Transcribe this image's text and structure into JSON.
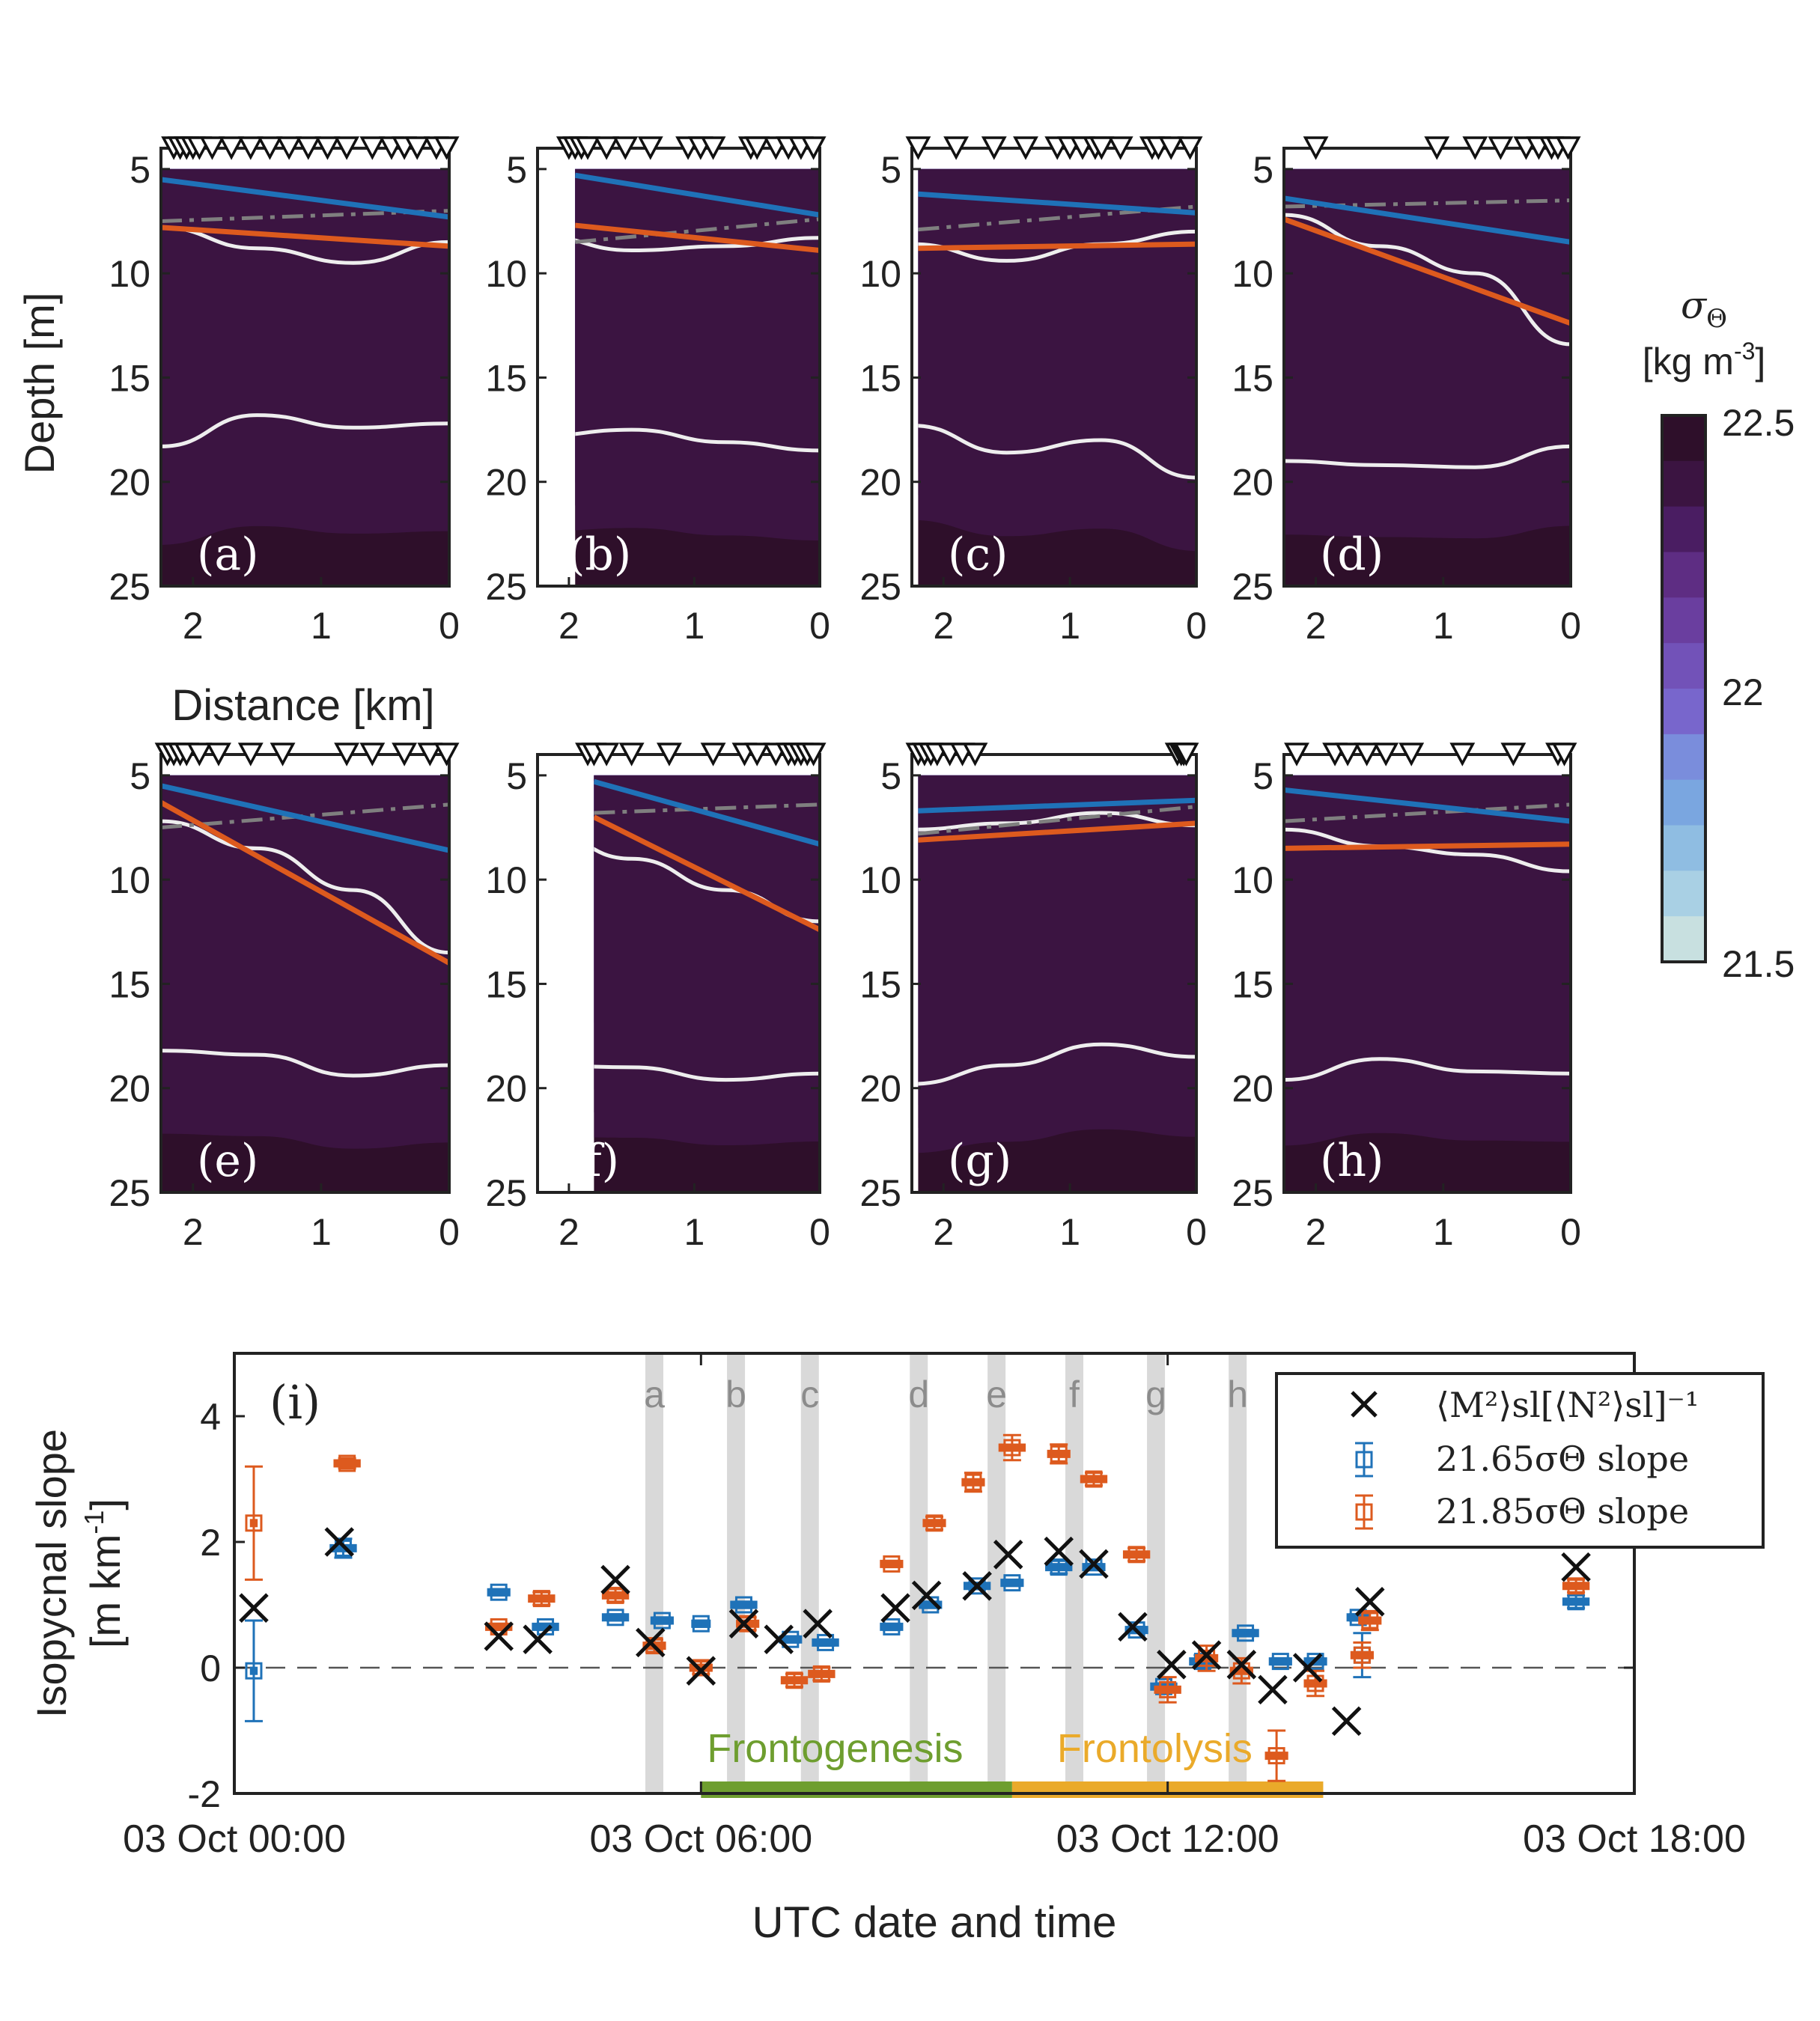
{
  "colors": {
    "blue": "#1f72b8",
    "orange": "#dd5a1e",
    "green": "#6e9e2f",
    "gold": "#eaaa2a",
    "gray_dashdot": "#7f7f7f",
    "contour_white": "#eeeeee",
    "shade": "#d9d9d9",
    "colormap": [
      "#e8f2f1",
      "#c8e0e0",
      "#a9d0e4",
      "#8fbde2",
      "#7aa6e0",
      "#7a8ddc",
      "#7866cc",
      "#7252b8",
      "#6a3e9f",
      "#5e2d83",
      "#4a1d62",
      "#3b1441",
      "#2e0f2a"
    ]
  },
  "sections": {
    "ylabel": "Depth [m]",
    "xlabel": "Distance [km]",
    "yticks": [
      "5",
      "10",
      "15",
      "20",
      "25"
    ],
    "xticks": [
      "2",
      "1",
      "0"
    ],
    "panels": [
      {
        "label": "(a)",
        "blue_line": [
          5.5,
          7.3
        ],
        "orange_line": [
          7.8,
          8.7
        ],
        "dashdot": [
          7.5,
          7.0
        ],
        "contour_upper": [
          7.8,
          8.8,
          9.5,
          8.5
        ],
        "contour_lower": [
          18.3,
          16.8,
          17.4,
          17.2
        ],
        "triangles_km": [
          2.15,
          2.1,
          2.05,
          2.0,
          1.95,
          1.85,
          1.7,
          1.55,
          1.4,
          1.25,
          1.1,
          0.95,
          0.8,
          0.6,
          0.45,
          0.35,
          0.25,
          0.1,
          0.02
        ],
        "data_start_km": 2.25
      },
      {
        "label": "(b)",
        "blue_line": [
          5.3,
          7.2
        ],
        "orange_line": [
          7.7,
          8.9
        ],
        "dashdot": [
          8.5,
          7.4
        ],
        "contour_upper": [
          8.2,
          8.9,
          8.7,
          8.3
        ],
        "contour_lower": [
          17.8,
          17.5,
          18.1,
          18.5
        ],
        "triangles_km": [
          2.0,
          1.95,
          1.9,
          1.85,
          1.7,
          1.55,
          1.35,
          1.05,
          0.95,
          0.85,
          0.55,
          0.5,
          0.35,
          0.25,
          0.15,
          0.05
        ],
        "data_start_km": 1.95
      },
      {
        "label": "(c)",
        "blue_line": [
          6.2,
          7.1
        ],
        "orange_line": [
          8.8,
          8.6
        ],
        "dashdot": [
          7.9,
          6.8
        ],
        "contour_upper": [
          8.6,
          9.4,
          8.6,
          8.0
        ],
        "contour_lower": [
          17.3,
          18.6,
          18.0,
          19.8
        ],
        "triangles_km": [
          2.2,
          1.9,
          1.6,
          1.35,
          1.1,
          1.0,
          0.9,
          0.8,
          0.75,
          0.6,
          0.35,
          0.3,
          0.2,
          0.05
        ],
        "data_start_km": 2.2
      },
      {
        "label": "(d)",
        "blue_line": [
          6.4,
          8.5
        ],
        "orange_line": [
          7.4,
          12.4
        ],
        "dashdot": [
          6.8,
          6.5
        ],
        "contour_upper": [
          7.2,
          8.7,
          10.0,
          13.4
        ],
        "contour_lower": [
          19.0,
          19.2,
          19.3,
          18.3
        ],
        "triangles_km": [
          2.0,
          1.05,
          0.75,
          0.55,
          0.35,
          0.25,
          0.15,
          0.1,
          0.02
        ],
        "data_start_km": 2.25
      }
    ],
    "panels_bottom": [
      {
        "label": "(e)",
        "blue_line": [
          5.5,
          8.6
        ],
        "orange_line": [
          6.3,
          14.0
        ],
        "dashdot": [
          7.5,
          6.4
        ],
        "contour_upper": [
          7.2,
          8.5,
          10.5,
          13.5
        ],
        "contour_lower": [
          18.2,
          18.4,
          19.4,
          18.9
        ],
        "triangles_km": [
          2.2,
          2.15,
          2.1,
          2.05,
          1.95,
          1.8,
          1.55,
          1.3,
          0.8,
          0.6,
          0.35,
          0.15,
          0.02
        ],
        "data_start_km": 2.25
      },
      {
        "label": "(f)",
        "blue_line": [
          5.3,
          8.3
        ],
        "orange_line": [
          7.0,
          12.4
        ],
        "dashdot": [
          6.8,
          6.4
        ],
        "contour_upper": [
          7.5,
          9.0,
          10.5,
          12.0
        ],
        "contour_lower": [
          18.9,
          19.0,
          19.6,
          19.3
        ],
        "triangles_km": [
          1.85,
          1.8,
          1.7,
          1.5,
          1.2,
          0.85,
          0.6,
          0.5,
          0.35,
          0.25,
          0.2,
          0.15,
          0.1,
          0.05
        ],
        "data_start_km": 1.8
      },
      {
        "label": "(g)",
        "blue_line": [
          6.7,
          6.2
        ],
        "orange_line": [
          8.1,
          7.3
        ],
        "dashdot": [
          7.8,
          6.5
        ],
        "contour_upper": [
          7.6,
          7.3,
          6.8,
          7.4
        ],
        "contour_lower": [
          19.8,
          18.9,
          17.9,
          18.5
        ],
        "triangles_km": [
          2.2,
          2.15,
          2.1,
          2.05,
          1.95,
          1.85,
          1.75,
          0.15,
          0.12,
          0.1,
          0.08
        ],
        "data_start_km": 2.2
      },
      {
        "label": "(h)",
        "blue_line": [
          5.7,
          7.2
        ],
        "orange_line": [
          8.5,
          8.3
        ],
        "dashdot": [
          7.2,
          6.4
        ],
        "contour_upper": [
          7.6,
          8.4,
          8.8,
          9.6
        ],
        "contour_lower": [
          19.6,
          18.6,
          19.2,
          19.3
        ],
        "triangles_km": [
          2.15,
          1.85,
          1.75,
          1.6,
          1.45,
          1.25,
          0.85,
          0.45,
          0.1,
          0.05
        ],
        "data_start_km": 2.25
      }
    ]
  },
  "colorbar": {
    "title_symbol": "σ",
    "title_sub": "Θ",
    "units_base": "[kg m",
    "units_exp": "-3",
    "units_close": "]",
    "ticks": [
      "22.5",
      "22",
      "21.5"
    ],
    "range": [
      21.5,
      22.5
    ]
  },
  "chart_data": {
    "type": "scatter",
    "panel_label": "(i)",
    "ylabel_line1": "Isopycnal slope",
    "ylabel_line2_base": "[m km",
    "ylabel_line2_exp": "-1",
    "ylabel_line2_close": "]",
    "xlabel": "UTC date and time",
    "xticks": [
      {
        "t": 0,
        "label": "03 Oct 00:00"
      },
      {
        "t": 6,
        "label": "03 Oct 06:00"
      },
      {
        "t": 12,
        "label": "03 Oct 12:00"
      },
      {
        "t": 18,
        "label": "03 Oct 18:00"
      }
    ],
    "xlim": [
      0,
      18
    ],
    "ylim": [
      -2,
      5
    ],
    "yticks": [
      -2,
      0,
      2,
      4
    ],
    "shaded_times": [
      {
        "t": 5.4,
        "label": "a"
      },
      {
        "t": 6.45,
        "label": "b"
      },
      {
        "t": 7.4,
        "label": "c"
      },
      {
        "t": 8.8,
        "label": "d"
      },
      {
        "t": 9.8,
        "label": "e"
      },
      {
        "t": 10.8,
        "label": "f"
      },
      {
        "t": 11.85,
        "label": "g"
      },
      {
        "t": 12.9,
        "label": "h"
      }
    ],
    "phases": [
      {
        "name": "Frontogenesis",
        "t0": 6.0,
        "t1": 10.0
      },
      {
        "name": "Frontolysis",
        "t0": 10.0,
        "t1": 14.0
      }
    ],
    "legend": {
      "cross_label": "⟨M²⟩sl[⟨N²⟩sl]⁻¹",
      "blue_label": "21.65σΘ slope",
      "orange_label": "21.85σΘ slope"
    },
    "series_cross": [
      [
        0.25,
        0.95
      ],
      [
        1.35,
        2.0
      ],
      [
        3.4,
        0.5
      ],
      [
        3.9,
        0.45
      ],
      [
        4.9,
        1.4
      ],
      [
        5.35,
        0.4
      ],
      [
        6.0,
        -0.05
      ],
      [
        6.55,
        0.7
      ],
      [
        7.0,
        0.45
      ],
      [
        7.5,
        0.7
      ],
      [
        8.5,
        0.95
      ],
      [
        8.9,
        1.15
      ],
      [
        9.55,
        1.3
      ],
      [
        9.95,
        1.8
      ],
      [
        10.6,
        1.85
      ],
      [
        11.05,
        1.65
      ],
      [
        11.55,
        0.65
      ],
      [
        12.05,
        0.05
      ],
      [
        12.5,
        0.2
      ],
      [
        12.95,
        0.05
      ],
      [
        13.35,
        -0.35
      ],
      [
        13.8,
        0.0
      ],
      [
        14.3,
        -0.85
      ],
      [
        14.6,
        1.05
      ],
      [
        17.25,
        1.6
      ]
    ],
    "series_blue": [
      {
        "t": 0.25,
        "v": -0.05,
        "w": 0.1,
        "e": 0.8
      },
      {
        "t": 1.4,
        "v": 1.9,
        "w": 0.35,
        "e": 0.15
      },
      {
        "t": 3.4,
        "v": 1.2,
        "w": 0.3,
        "e": 0.05
      },
      {
        "t": 4.0,
        "v": 0.65,
        "w": 0.35,
        "e": 0.05
      },
      {
        "t": 4.9,
        "v": 0.8,
        "w": 0.35,
        "e": 0.05
      },
      {
        "t": 5.5,
        "v": 0.75,
        "w": 0.3,
        "e": 0.05
      },
      {
        "t": 6.0,
        "v": 0.7,
        "w": 0.25,
        "e": 0.05
      },
      {
        "t": 6.55,
        "v": 1.0,
        "w": 0.35,
        "e": 0.05
      },
      {
        "t": 7.15,
        "v": 0.45,
        "w": 0.3,
        "e": 0.05
      },
      {
        "t": 7.6,
        "v": 0.4,
        "w": 0.35,
        "e": 0.05
      },
      {
        "t": 8.45,
        "v": 0.65,
        "w": 0.3,
        "e": 0.05
      },
      {
        "t": 8.95,
        "v": 1.0,
        "w": 0.3,
        "e": 0.05
      },
      {
        "t": 9.55,
        "v": 1.3,
        "w": 0.35,
        "e": 0.05
      },
      {
        "t": 10.0,
        "v": 1.35,
        "w": 0.3,
        "e": 0.05
      },
      {
        "t": 10.6,
        "v": 1.6,
        "w": 0.35,
        "e": 0.1
      },
      {
        "t": 11.05,
        "v": 1.6,
        "w": 0.3,
        "e": 0.05
      },
      {
        "t": 11.6,
        "v": 0.6,
        "w": 0.3,
        "e": 0.05
      },
      {
        "t": 11.95,
        "v": -0.3,
        "w": 0.35,
        "e": 0.05
      },
      {
        "t": 12.45,
        "v": 0.1,
        "w": 0.35,
        "e": 0.1
      },
      {
        "t": 13.0,
        "v": 0.55,
        "w": 0.35,
        "e": 0.05
      },
      {
        "t": 13.45,
        "v": 0.1,
        "w": 0.3,
        "e": 0.05
      },
      {
        "t": 13.9,
        "v": 0.1,
        "w": 0.3,
        "e": 0.05
      },
      {
        "t": 14.45,
        "v": 0.8,
        "w": 0.3,
        "e": 0.05
      },
      {
        "t": 14.5,
        "v": 0.2,
        "w": 0.15,
        "e": 0.35
      },
      {
        "t": 17.25,
        "v": 1.05,
        "w": 0.35,
        "e": 0.1
      }
    ],
    "series_orange": [
      {
        "t": 0.25,
        "v": 2.3,
        "w": 0.1,
        "e": 0.9
      },
      {
        "t": 1.45,
        "v": 3.25,
        "w": 0.35,
        "e": 0.08
      },
      {
        "t": 3.4,
        "v": 0.65,
        "w": 0.35,
        "e": 0.05
      },
      {
        "t": 3.95,
        "v": 1.1,
        "w": 0.35,
        "e": 0.1
      },
      {
        "t": 4.9,
        "v": 1.15,
        "w": 0.35,
        "e": 0.1
      },
      {
        "t": 5.4,
        "v": 0.35,
        "w": 0.3,
        "e": 0.1
      },
      {
        "t": 6.0,
        "v": 0.0,
        "w": 0.3,
        "e": 0.1
      },
      {
        "t": 6.6,
        "v": 0.7,
        "w": 0.3,
        "e": 0.1
      },
      {
        "t": 7.2,
        "v": -0.2,
        "w": 0.35,
        "e": 0.1
      },
      {
        "t": 7.55,
        "v": -0.1,
        "w": 0.35,
        "e": 0.1
      },
      {
        "t": 8.45,
        "v": 1.65,
        "w": 0.3,
        "e": 0.05
      },
      {
        "t": 9.0,
        "v": 2.3,
        "w": 0.3,
        "e": 0.1
      },
      {
        "t": 9.5,
        "v": 2.95,
        "w": 0.3,
        "e": 0.15
      },
      {
        "t": 10.0,
        "v": 3.5,
        "w": 0.35,
        "e": 0.2
      },
      {
        "t": 10.6,
        "v": 3.4,
        "w": 0.3,
        "e": 0.15
      },
      {
        "t": 11.05,
        "v": 3.0,
        "w": 0.35,
        "e": 0.1
      },
      {
        "t": 11.6,
        "v": 1.8,
        "w": 0.35,
        "e": 0.1
      },
      {
        "t": 12.0,
        "v": -0.35,
        "w": 0.35,
        "e": 0.2
      },
      {
        "t": 12.5,
        "v": 0.15,
        "w": 0.3,
        "e": 0.2
      },
      {
        "t": 12.95,
        "v": -0.05,
        "w": 0.3,
        "e": 0.2
      },
      {
        "t": 13.4,
        "v": -1.4,
        "w": 0.3,
        "e": 0.4
      },
      {
        "t": 13.9,
        "v": -0.25,
        "w": 0.3,
        "e": 0.2
      },
      {
        "t": 14.5,
        "v": 0.2,
        "w": 0.3,
        "e": 0.2
      },
      {
        "t": 14.6,
        "v": 0.75,
        "w": 0.3,
        "e": 0.15
      },
      {
        "t": 17.25,
        "v": 1.3,
        "w": 0.35,
        "e": 0.1
      }
    ]
  }
}
